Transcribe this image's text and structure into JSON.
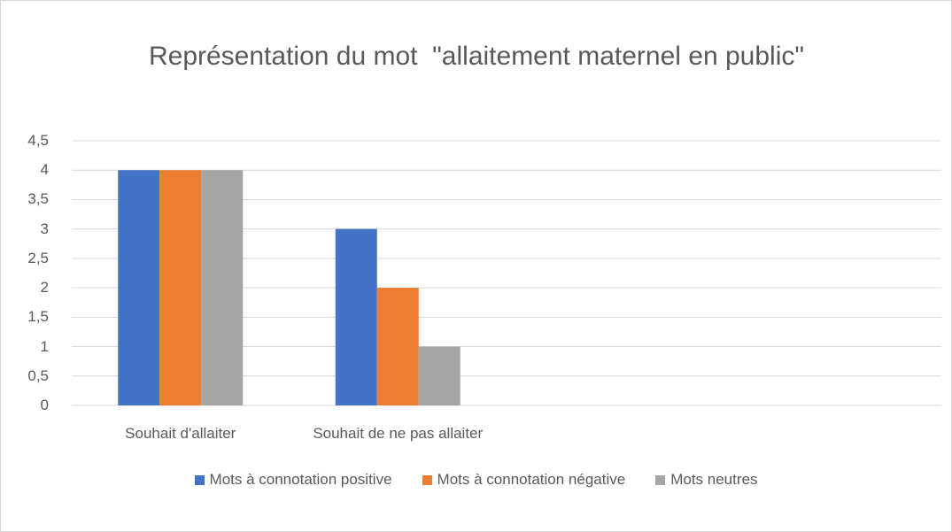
{
  "chart_data": {
    "type": "bar",
    "title": "Représentation du mot  \"allaitement maternel en public\"",
    "categories": [
      "Souhait d'allaiter",
      "Souhait de ne pas allaiter",
      null,
      null
    ],
    "series": [
      {
        "name": "Mots à connotation positive",
        "color": "#4472c4",
        "values": [
          4,
          3,
          null,
          null
        ]
      },
      {
        "name": "Mots à connotation négative",
        "color": "#ed7d31",
        "values": [
          4,
          2,
          null,
          null
        ]
      },
      {
        "name": "Mots neutres",
        "color": "#a5a5a5",
        "values": [
          4,
          1,
          null,
          null
        ]
      }
    ],
    "ylim": [
      0,
      4.5
    ],
    "yticks": [
      0,
      {
        "value": 0.5,
        "label": "0,5"
      },
      1,
      {
        "value": 1.5,
        "label": "1,5"
      },
      2,
      {
        "value": 2.5,
        "label": "2,5"
      },
      3,
      {
        "value": 3.5,
        "label": "3,5"
      },
      4,
      {
        "value": 4.5,
        "label": "4,5"
      }
    ],
    "grid": true,
    "legend": "bottom"
  }
}
